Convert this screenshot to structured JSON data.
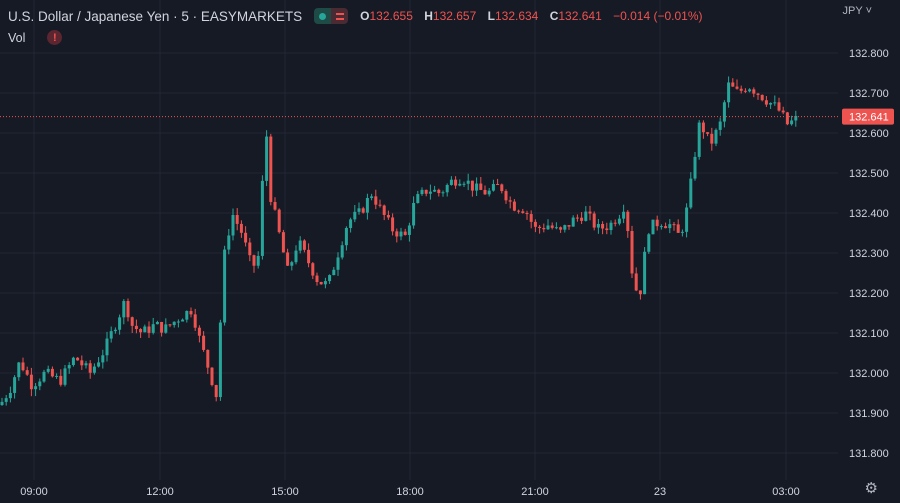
{
  "header": {
    "symbol": "U.S. Dollar / Japanese Yen · 5 · EASYMARKETS",
    "ohlc": [
      {
        "key": "O",
        "value": "132.655"
      },
      {
        "key": "H",
        "value": "132.657"
      },
      {
        "key": "L",
        "value": "132.634"
      },
      {
        "key": "C",
        "value": "132.641"
      }
    ],
    "change": "−0.014 (−0.01%)",
    "volume_label": "Vol",
    "volume_warning": "!"
  },
  "currency_label": "JPY ˅",
  "settings_icon": "gear-icon",
  "colors": {
    "background": "#161a25",
    "grid": "#232735",
    "up": "#26a69a",
    "down": "#ef5350",
    "text": "#d1d4dc"
  },
  "chart_data": {
    "type": "candlestick",
    "interval": "5",
    "ylim": [
      131.74,
      132.9
    ],
    "yticks": [
      "131.800",
      "131.900",
      "132.000",
      "132.100",
      "132.200",
      "132.300",
      "132.400",
      "132.500",
      "132.600",
      "132.700",
      "132.800"
    ],
    "x_tick_labels": [
      "09:00",
      "12:00",
      "15:00",
      "18:00",
      "21:00",
      "23",
      "03:00"
    ],
    "last_price": "132.641",
    "price_path": [
      [
        0,
        131.92
      ],
      [
        10,
        131.96
      ],
      [
        20,
        132.03
      ],
      [
        32,
        131.97
      ],
      [
        45,
        132.0
      ],
      [
        60,
        131.98
      ],
      [
        75,
        132.04
      ],
      [
        90,
        132.0
      ],
      [
        105,
        132.06
      ],
      [
        115,
        132.12
      ],
      [
        125,
        132.18
      ],
      [
        132,
        132.12
      ],
      [
        142,
        132.1
      ],
      [
        155,
        132.12
      ],
      [
        165,
        132.11
      ],
      [
        180,
        132.14
      ],
      [
        192,
        132.16
      ],
      [
        200,
        132.08
      ],
      [
        210,
        132.0
      ],
      [
        218,
        131.93
      ],
      [
        222,
        132.26
      ],
      [
        232,
        132.4
      ],
      [
        242,
        132.35
      ],
      [
        252,
        132.26
      ],
      [
        260,
        132.3
      ],
      [
        265,
        132.66
      ],
      [
        270,
        132.45
      ],
      [
        278,
        132.36
      ],
      [
        288,
        132.25
      ],
      [
        298,
        132.33
      ],
      [
        308,
        132.28
      ],
      [
        318,
        132.23
      ],
      [
        328,
        132.22
      ],
      [
        338,
        132.3
      ],
      [
        348,
        132.38
      ],
      [
        360,
        132.4
      ],
      [
        372,
        132.45
      ],
      [
        380,
        132.41
      ],
      [
        392,
        132.36
      ],
      [
        405,
        132.34
      ],
      [
        415,
        132.43
      ],
      [
        428,
        132.46
      ],
      [
        440,
        132.45
      ],
      [
        452,
        132.48
      ],
      [
        462,
        132.49
      ],
      [
        475,
        132.46
      ],
      [
        488,
        132.45
      ],
      [
        500,
        132.47
      ],
      [
        512,
        132.42
      ],
      [
        525,
        132.41
      ],
      [
        535,
        132.36
      ],
      [
        548,
        132.37
      ],
      [
        560,
        132.35
      ],
      [
        572,
        132.38
      ],
      [
        585,
        132.4
      ],
      [
        598,
        132.36
      ],
      [
        610,
        132.37
      ],
      [
        620,
        132.4
      ],
      [
        626,
        132.43
      ],
      [
        630,
        132.28
      ],
      [
        636,
        132.21
      ],
      [
        640,
        132.2
      ],
      [
        648,
        132.36
      ],
      [
        660,
        132.38
      ],
      [
        670,
        132.37
      ],
      [
        680,
        132.34
      ],
      [
        688,
        132.42
      ],
      [
        695,
        132.55
      ],
      [
        700,
        132.63
      ],
      [
        710,
        132.57
      ],
      [
        720,
        132.62
      ],
      [
        728,
        132.72
      ],
      [
        738,
        132.7
      ],
      [
        748,
        132.72
      ],
      [
        758,
        132.7
      ],
      [
        768,
        132.68
      ],
      [
        778,
        132.66
      ],
      [
        788,
        132.62
      ],
      [
        793,
        132.63
      ],
      [
        800,
        132.64
      ]
    ]
  }
}
